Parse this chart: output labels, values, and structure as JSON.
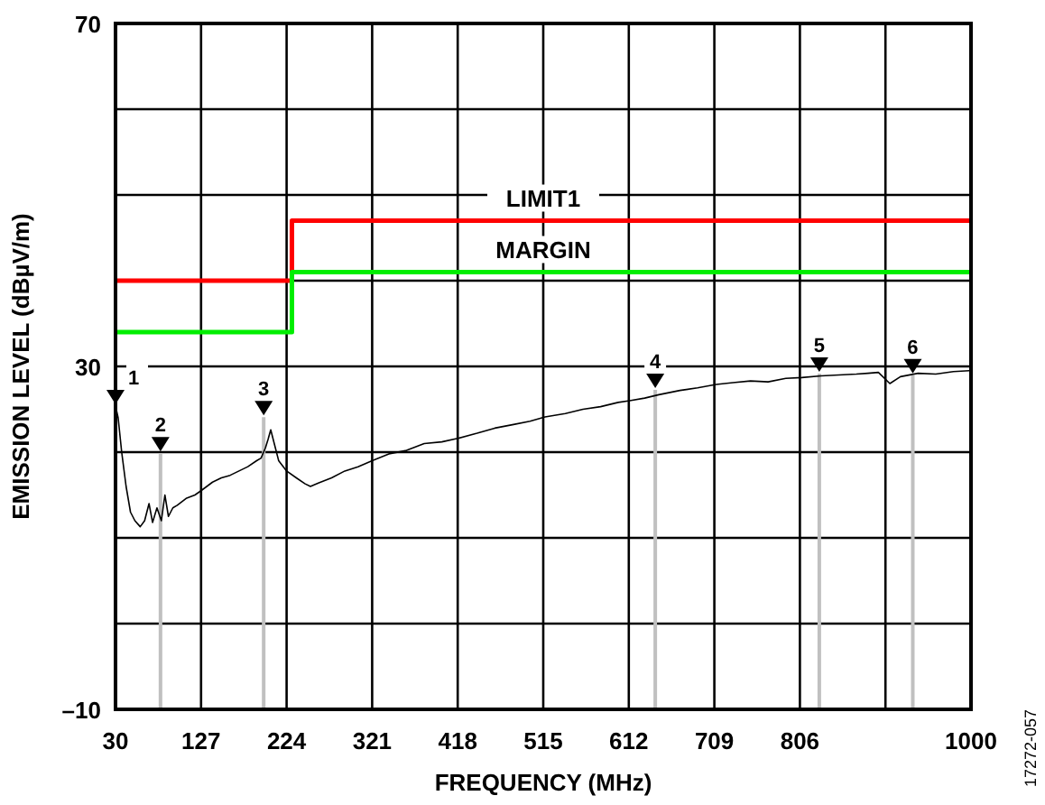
{
  "chart_data": {
    "type": "line",
    "xlabel": "FREQUENCY (MHz)",
    "ylabel": "EMISSION LEVEL (dBµV/m)",
    "xlim": [
      30,
      1000
    ],
    "xticks": [
      30,
      127,
      224,
      321,
      418,
      515,
      612,
      709,
      806,
      {
        "value": 903,
        "label": null
      },
      1000
    ],
    "ylim": [
      -10,
      70
    ],
    "yticks": [
      {
        "value": -10,
        "label": "–10"
      },
      {
        "value": 0,
        "label": null
      },
      {
        "value": 10,
        "label": null
      },
      {
        "value": 20,
        "label": null
      },
      30,
      {
        "value": 40,
        "label": null
      },
      {
        "value": 50,
        "label": null
      },
      {
        "value": 60,
        "label": null
      },
      70
    ],
    "grid": true,
    "line_style": "solid",
    "series": [
      {
        "name": "LIMIT1",
        "type": "step",
        "color": "#ff0000",
        "x": [
          30,
          230,
          230,
          1000
        ],
        "values": [
          40,
          40,
          47,
          47
        ]
      },
      {
        "name": "MARGIN",
        "type": "step",
        "color": "#00ee00",
        "x": [
          30,
          230,
          230,
          1000
        ],
        "values": [
          34,
          34,
          41,
          41
        ]
      },
      {
        "color": "#000000",
        "x": [
          30,
          33,
          37,
          42,
          47,
          52,
          58,
          63,
          68,
          72,
          77,
          82,
          86,
          90,
          95,
          100,
          110,
          120,
          127,
          140,
          150,
          160,
          170,
          180,
          190,
          195,
          200,
          203,
          206,
          210,
          215,
          224,
          235,
          245,
          251,
          260,
          275,
          290,
          305,
          321,
          340,
          360,
          380,
          400,
          418,
          440,
          460,
          480,
          500,
          517,
          540,
          560,
          580,
          600,
          613,
          630,
          646,
          670,
          690,
          711,
          730,
          750,
          770,
          790,
          808,
          830,
          850,
          870,
          883,
          895,
          908,
          920,
          940,
          960,
          980,
          998
        ],
        "values": [
          25.4,
          24,
          20,
          16,
          13,
          12,
          11.3,
          12,
          14,
          11.8,
          13.5,
          12,
          15,
          12.5,
          13.5,
          13.8,
          14.6,
          15,
          15.5,
          16.5,
          17,
          17.3,
          17.8,
          18.3,
          19,
          19.3,
          20.5,
          21.5,
          22.6,
          21,
          19,
          17.8,
          17,
          16.3,
          16,
          16.4,
          17,
          17.8,
          18.3,
          19,
          19.8,
          20.2,
          21,
          21.2,
          21.6,
          22.2,
          22.8,
          23.2,
          23.6,
          24.1,
          24.5,
          25,
          25.3,
          25.8,
          26,
          26.3,
          26.7,
          27.2,
          27.5,
          27.9,
          28.1,
          28.3,
          28.2,
          28.6,
          28.7,
          28.9,
          29,
          29.1,
          29.2,
          29.3,
          28,
          28.8,
          29.2,
          29.1,
          29.4,
          29.5
        ]
      }
    ],
    "annotations": [
      {
        "text": "1",
        "x": 30,
        "y": 26
      },
      {
        "text": "2",
        "x": 81,
        "y": 20.5
      },
      {
        "text": "3",
        "x": 198,
        "y": 24.7
      },
      {
        "text": "4",
        "x": 642,
        "y": 27.9
      },
      {
        "text": "5",
        "x": 828,
        "y": 29.8
      },
      {
        "text": "6",
        "x": 934,
        "y": 29.6
      },
      "17272-057"
    ]
  }
}
